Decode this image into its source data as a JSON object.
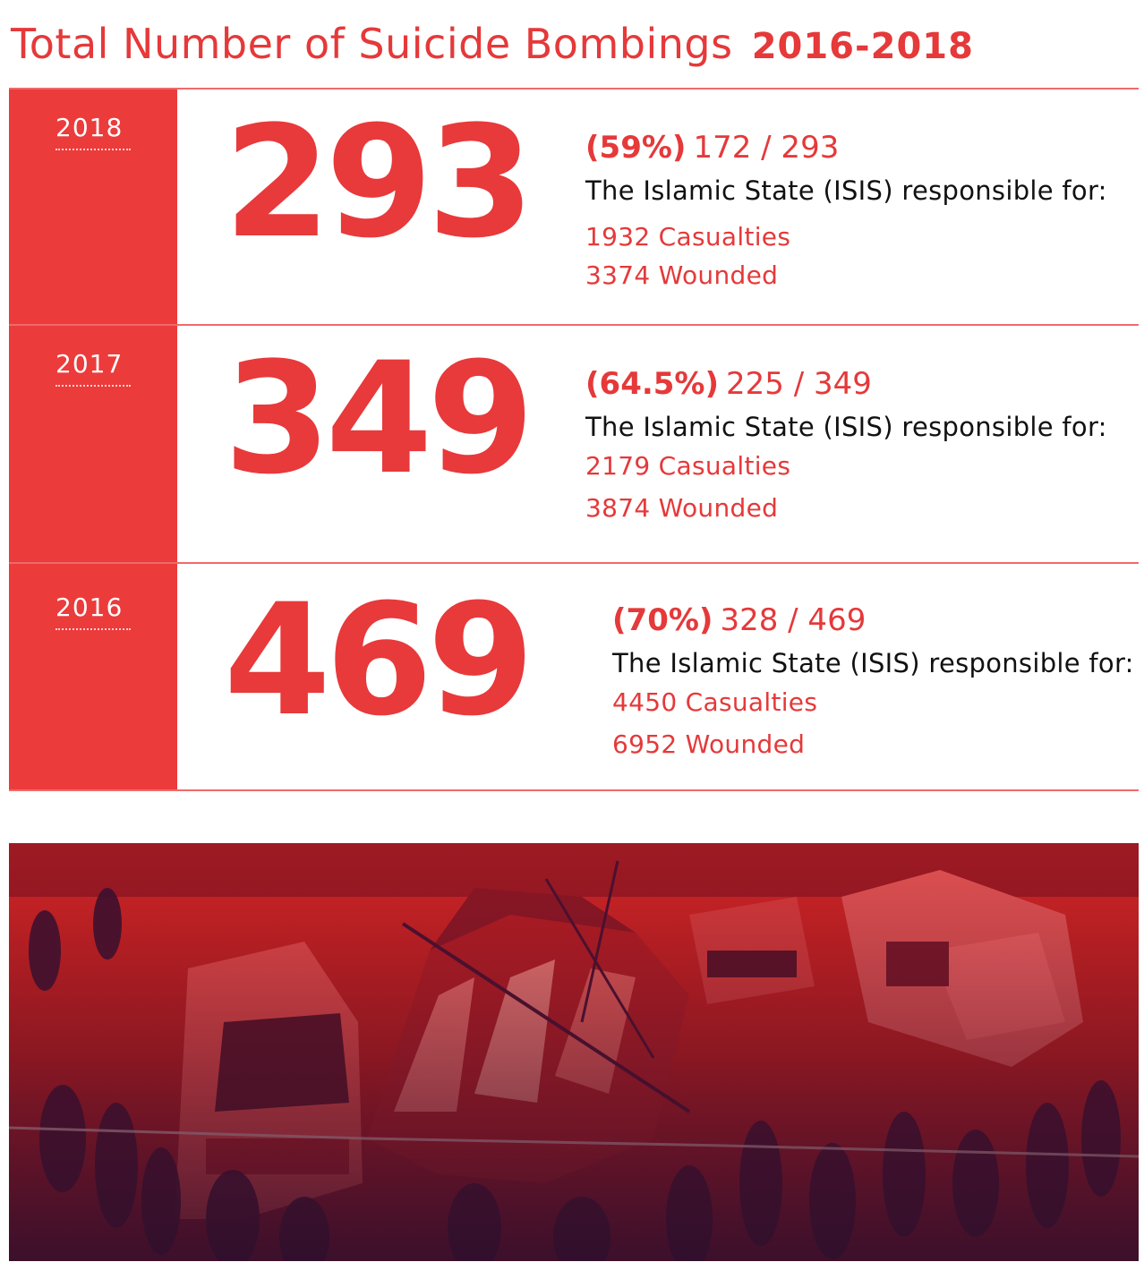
{
  "title": {
    "main": "Total Number of Suicide Bombings",
    "range": "2016-2018"
  },
  "rows": [
    {
      "year": "2018",
      "total": "293",
      "percent": "(59%)",
      "ratio": "172 / 293",
      "responsible": "The Islamic State (ISIS) responsible for:",
      "casualties": "1932 Casualties",
      "wounded": "3374 Wounded"
    },
    {
      "year": "2017",
      "total": "349",
      "percent": "(64.5%)",
      "ratio": "225 / 349",
      "responsible": "The Islamic State (ISIS) responsible for:",
      "casualties": "2179 Casualties",
      "wounded": "3874 Wounded"
    },
    {
      "year": "2016",
      "total": "469",
      "percent": "(70%)",
      "ratio": "328 / 469",
      "responsible": "The Islamic State (ISIS) responsible for:",
      "casualties": "4450 Casualties",
      "wounded": "6952 Wounded"
    }
  ],
  "colors": {
    "accent": "#e8393b",
    "year_column": "#ec3b3b",
    "photo_tint": "#c41e1e",
    "photo_shadow": "#3a1230"
  },
  "photo": {
    "icon": "bombing-scene-photo"
  }
}
